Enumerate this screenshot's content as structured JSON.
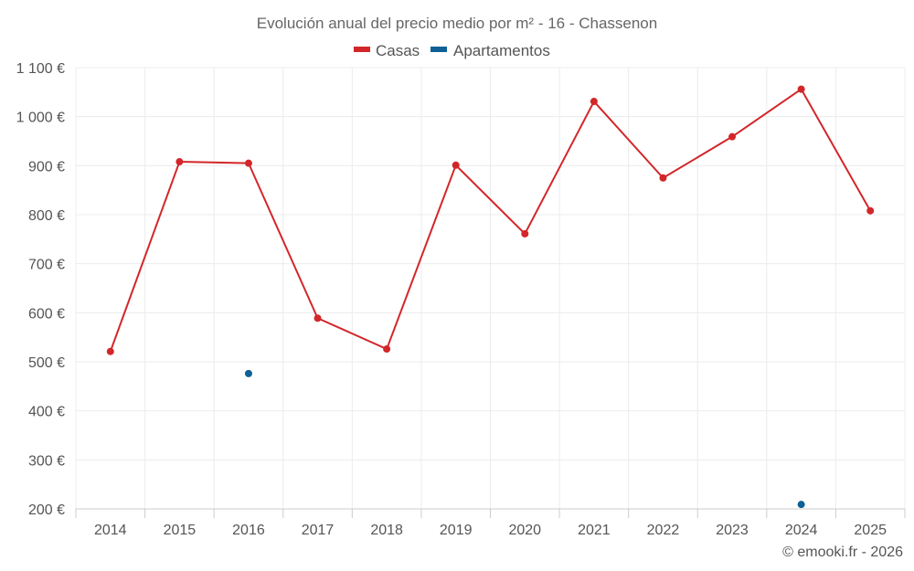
{
  "chart_data": {
    "type": "line",
    "title": "Evolución anual del precio medio por m² - 16 - Chassenon",
    "categories": [
      "2014",
      "2015",
      "2016",
      "2017",
      "2018",
      "2019",
      "2020",
      "2021",
      "2022",
      "2023",
      "2024",
      "2025"
    ],
    "series": [
      {
        "name": "Casas",
        "color": "#d32629",
        "values": [
          521,
          908,
          905,
          589,
          526,
          901,
          761,
          1031,
          875,
          959,
          1056,
          808
        ]
      },
      {
        "name": "Apartamentos",
        "color": "#0e6096",
        "values": [
          null,
          null,
          476,
          null,
          null,
          null,
          null,
          null,
          null,
          null,
          209,
          null
        ]
      }
    ],
    "ylim": [
      200,
      1100
    ],
    "yticks": [
      200,
      300,
      400,
      500,
      600,
      700,
      800,
      900,
      1000,
      1100
    ],
    "ytick_labels": [
      "200 €",
      "300 €",
      "400 €",
      "500 €",
      "600 €",
      "700 €",
      "800 €",
      "900 €",
      "1 000 €",
      "1 100 €"
    ],
    "xlabel": "",
    "ylabel": "",
    "grid": true,
    "legend": "top-center"
  },
  "credit": "© emooki.fr - 2026"
}
